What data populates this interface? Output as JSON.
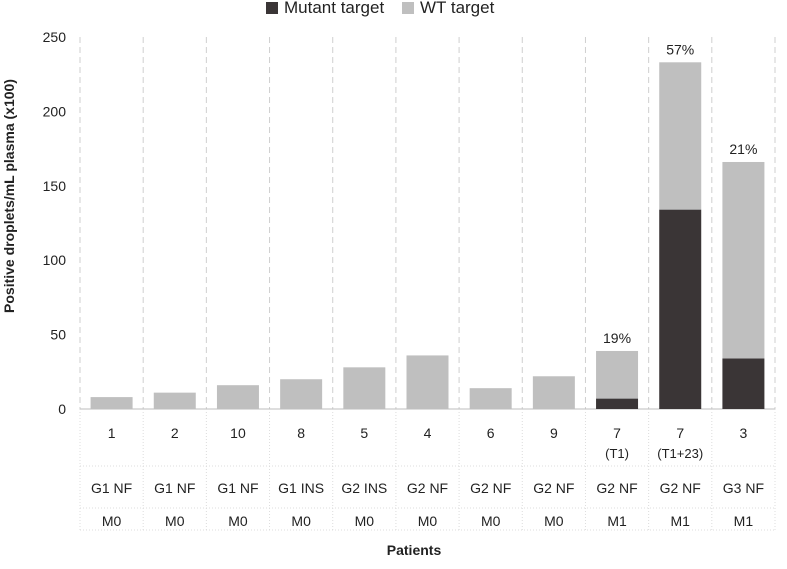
{
  "chart_data": {
    "type": "bar",
    "stacked": true,
    "title": "",
    "xlabel": "Patients",
    "ylabel": "Positive droplets/mL plasma (x100)",
    "ylim": [
      0,
      250
    ],
    "yticks": [
      "0",
      "50",
      "100",
      "150",
      "200",
      "250"
    ],
    "legend": {
      "position": "top-center"
    },
    "categories": [
      {
        "patient": "1",
        "sub": "",
        "grade": "G1 NF",
        "stage": "M0"
      },
      {
        "patient": "2",
        "sub": "",
        "grade": "G1 NF",
        "stage": "M0"
      },
      {
        "patient": "10",
        "sub": "",
        "grade": "G1 NF",
        "stage": "M0"
      },
      {
        "patient": "8",
        "sub": "",
        "grade": "G1 INS",
        "stage": "M0"
      },
      {
        "patient": "5",
        "sub": "",
        "grade": "G2 INS",
        "stage": "M0"
      },
      {
        "patient": "4",
        "sub": "",
        "grade": "G2 NF",
        "stage": "M0"
      },
      {
        "patient": "6",
        "sub": "",
        "grade": "G2 NF",
        "stage": "M0"
      },
      {
        "patient": "9",
        "sub": "",
        "grade": "G2 NF",
        "stage": "M0"
      },
      {
        "patient": "7",
        "sub": "(T1)",
        "grade": "G2 NF",
        "stage": "M1"
      },
      {
        "patient": "7",
        "sub": "(T1+23)",
        "grade": "G2 NF",
        "stage": "M1"
      },
      {
        "patient": "3",
        "sub": "",
        "grade": "G3 NF",
        "stage": "M1"
      }
    ],
    "series": [
      {
        "name": "Mutant target",
        "color": "#3a3536",
        "values": [
          0,
          0,
          0,
          0,
          0,
          0,
          0,
          0,
          7,
          134,
          34
        ]
      },
      {
        "name": "WT target",
        "color": "#bfbfbf",
        "values": [
          8,
          11,
          16,
          20,
          28,
          36,
          14,
          22,
          32,
          99,
          132
        ]
      }
    ],
    "annotations": [
      "",
      "",
      "",
      "",
      "",
      "",
      "",
      "",
      "19%",
      "57%",
      "21%"
    ]
  }
}
